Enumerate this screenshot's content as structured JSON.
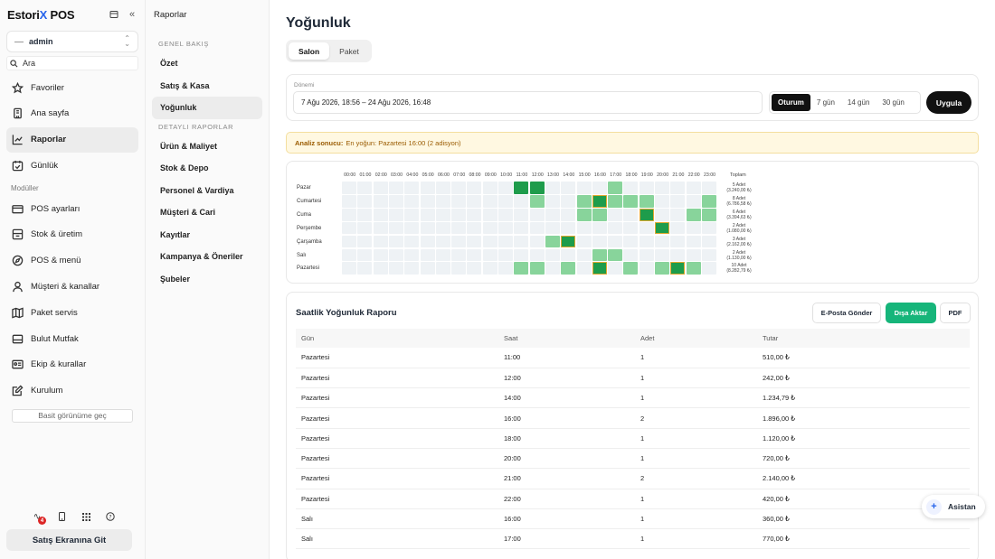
{
  "sidebar": {
    "brand_prefix": "Estori",
    "brand_x": "X",
    "brand_suffix": " POS",
    "user": "admin",
    "search_placeholder": "Ara",
    "items": [
      {
        "label": "Favoriler",
        "icon": "star-icon"
      },
      {
        "label": "Ana sayfa",
        "icon": "building-icon"
      },
      {
        "label": "Raporlar",
        "icon": "chart-icon"
      },
      {
        "label": "Günlük",
        "icon": "calendar-check-icon"
      }
    ],
    "modules_label": "Modüller",
    "modules": [
      {
        "label": "POS ayarları",
        "icon": "credit-card-icon"
      },
      {
        "label": "Stok & üretim",
        "icon": "box-icon"
      },
      {
        "label": "POS & menü",
        "icon": "compass-icon"
      },
      {
        "label": "Müşteri & kanallar",
        "icon": "user-icon"
      },
      {
        "label": "Paket servis",
        "icon": "map-icon"
      },
      {
        "label": "Bulut Mutfak",
        "icon": "monitor-icon"
      },
      {
        "label": "Ekip & kurallar",
        "icon": "id-card-icon"
      },
      {
        "label": "Kurulum",
        "icon": "edit-icon"
      }
    ],
    "simple_view": "Basit görünüme geç",
    "badge_count": "4",
    "goto_sales": "Satış Ekranına Git"
  },
  "reports_nav": {
    "title": "Raporlar",
    "group1": "GENEL BAKIŞ",
    "group1_items": [
      "Özet",
      "Satış & Kasa",
      "Yoğunluk"
    ],
    "group2": "DETAYLI RAPORLAR",
    "group2_items": [
      "Ürün & Maliyet",
      "Stok & Depo",
      "Personel & Vardiya",
      "Müşteri & Cari",
      "Kayıtlar",
      "Kampanya & Öneriler",
      "Şubeler"
    ]
  },
  "page": {
    "title": "Yoğunluk",
    "tabs": [
      "Salon",
      "Paket"
    ],
    "period_label": "Dönemi",
    "period_value": "7 Ağu 2026, 18:56 – 24 Ağu 2026, 16:48",
    "ranges": [
      "Oturum",
      "7 gün",
      "14 gün",
      "30 gün"
    ],
    "apply": "Uygula",
    "alert_bold": "Analiz sonucu:",
    "alert_text": "En yoğun: Pazartesi 16:00 (2 adisyon)"
  },
  "chart_data": {
    "type": "heatmap",
    "x": [
      "00:00",
      "01:00",
      "02:00",
      "03:00",
      "04:00",
      "05:00",
      "06:00",
      "07:00",
      "08:00",
      "09:00",
      "10:00",
      "11:00",
      "12:00",
      "13:00",
      "14:00",
      "15:00",
      "16:00",
      "17:00",
      "18:00",
      "19:00",
      "20:00",
      "21:00",
      "22:00",
      "23:00"
    ],
    "total_header": "Toplam",
    "rows": [
      {
        "day": "Pazar",
        "total": "5 Adet",
        "total_amount": "(3.240,00 ₺)",
        "cells": {
          "11": 3,
          "12": 3,
          "17": 1
        }
      },
      {
        "day": "Cumartesi",
        "total": "8 Adet",
        "total_amount": "(6.786,58 ₺)",
        "cells": {
          "12": 1,
          "15": 1,
          "16": 3,
          "17": 1,
          "18": 1,
          "19": 1,
          "23": 1
        }
      },
      {
        "day": "Cuma",
        "total": "6 Adet",
        "total_amount": "(3.394,63 ₺)",
        "cells": {
          "15": 1,
          "16": 1,
          "19": 3,
          "22": 1,
          "23": 1
        }
      },
      {
        "day": "Perşembe",
        "total": "2 Adet",
        "total_amount": "(1.080,00 ₺)",
        "cells": {
          "20": 3
        }
      },
      {
        "day": "Çarşamba",
        "total": "3 Adet",
        "total_amount": "(2.162,00 ₺)",
        "cells": {
          "13": 1,
          "14": 3
        }
      },
      {
        "day": "Salı",
        "total": "2 Adet",
        "total_amount": "(1.130,00 ₺)",
        "cells": {
          "16": 1,
          "17": 1
        }
      },
      {
        "day": "Pazartesi",
        "total": "10 Adet",
        "total_amount": "(8.282,79 ₺)",
        "cells": {
          "11": 1,
          "12": 1,
          "14": 1,
          "16": 3,
          "18": 1,
          "20": 1,
          "21": 3,
          "22": 1
        }
      }
    ],
    "peaks": [
      [
        1,
        16
      ],
      [
        2,
        19
      ],
      [
        3,
        20
      ],
      [
        4,
        14
      ],
      [
        6,
        16
      ],
      [
        6,
        21
      ]
    ]
  },
  "report": {
    "title": "Saatlik Yoğunluk Raporu",
    "btn_email": "E-Posta Gönder",
    "btn_export": "Dışa Aktar",
    "btn_pdf": "PDF",
    "columns": [
      "Gün",
      "Saat",
      "Adet",
      "Tutar"
    ],
    "rows": [
      [
        "Pazartesi",
        "11:00",
        "1",
        "510,00 ₺"
      ],
      [
        "Pazartesi",
        "12:00",
        "1",
        "242,00 ₺"
      ],
      [
        "Pazartesi",
        "14:00",
        "1",
        "1.234,79 ₺"
      ],
      [
        "Pazartesi",
        "16:00",
        "2",
        "1.896,00 ₺"
      ],
      [
        "Pazartesi",
        "18:00",
        "1",
        "1.120,00 ₺"
      ],
      [
        "Pazartesi",
        "20:00",
        "1",
        "720,00 ₺"
      ],
      [
        "Pazartesi",
        "21:00",
        "2",
        "2.140,00 ₺"
      ],
      [
        "Pazartesi",
        "22:00",
        "1",
        "420,00 ₺"
      ],
      [
        "Salı",
        "16:00",
        "1",
        "360,00 ₺"
      ],
      [
        "Salı",
        "17:00",
        "1",
        "770,00 ₺"
      ]
    ]
  },
  "assistant": "Asistan"
}
